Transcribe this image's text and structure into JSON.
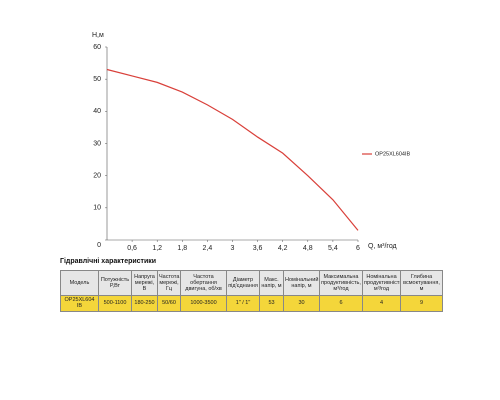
{
  "chart_data": {
    "type": "line",
    "y_label": "Н,м",
    "x_label": "Q, м³/год",
    "x": [
      0,
      0.6,
      1.2,
      1.8,
      2.4,
      3,
      3.6,
      4.2,
      4.8,
      5.4,
      6
    ],
    "series": [
      {
        "name": "OP25XL604IB",
        "color": "#d9403a",
        "values": [
          53,
          51,
          49,
          46,
          42,
          37.5,
          32,
          27,
          20,
          12.5,
          3
        ]
      }
    ],
    "xlim": [
      0,
      6
    ],
    "ylim": [
      0,
      60
    ],
    "xticks": [
      {
        "value": 0.6,
        "label": "0,6"
      },
      {
        "value": 1.2,
        "label": "1,2"
      },
      {
        "value": 1.8,
        "label": "1,8"
      },
      {
        "value": 2.4,
        "label": "2,4"
      },
      3,
      {
        "value": 3.6,
        "label": "3,6"
      },
      {
        "value": 4.2,
        "label": "4,2"
      },
      {
        "value": 4.8,
        "label": "4,8"
      },
      {
        "value": 5.4,
        "label": "5,4"
      },
      6
    ],
    "yticks": [
      0,
      10,
      20,
      30,
      40,
      50,
      60
    ],
    "legend": "right"
  },
  "table": {
    "title": "Гідравлічні характеристики",
    "header": [
      "Модель",
      "Потужність Р,Вт",
      "Напруга мережі, В",
      "Частота мережі, Гц",
      "Частота обертання двигуна, об/хв",
      "Діаметр під'єднання",
      "Макс. напір, м",
      "Номінальний напір, м",
      "Максимальна продуктивність, м³/год",
      "Номінальна продуктивність, м³/год",
      "Глибина всмоктування, м"
    ],
    "rows": [
      [
        "OP25XL604 IB",
        "500-1100",
        "180-250",
        "50/60",
        "1000-3500",
        "1\" / 1\"",
        "53",
        "30",
        "6",
        "4",
        "9"
      ]
    ]
  }
}
